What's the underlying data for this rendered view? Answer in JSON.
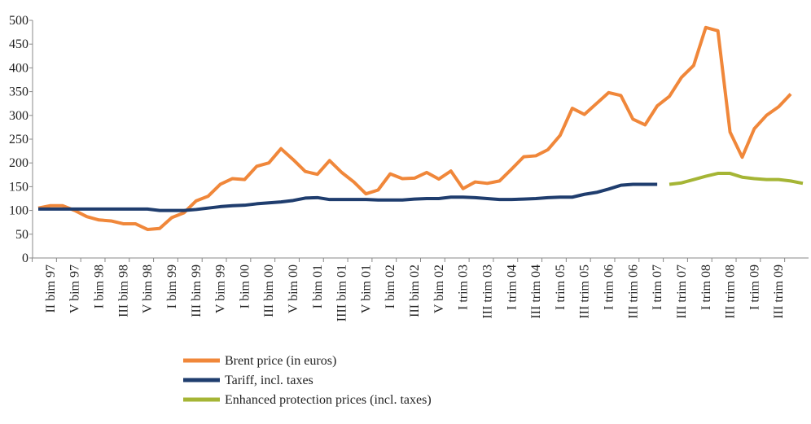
{
  "chart_data": {
    "type": "line",
    "categories": [
      null,
      "II bim 97",
      null,
      "V bim 97",
      null,
      "I bim 98",
      null,
      "III bim 98",
      null,
      "V bim 98",
      null,
      "I bim 99",
      null,
      "III bim 99",
      null,
      "V bim 99",
      null,
      "I bim 00",
      null,
      "III bim 00",
      null,
      "V bim 00",
      null,
      "I bim 01",
      null,
      "IIII bim 01",
      null,
      "V bim 01",
      null,
      "I bim 02",
      null,
      "III bim 02",
      null,
      "V bim 02",
      null,
      "I trim 03",
      null,
      "III trim 03",
      null,
      "I trim 04",
      null,
      "III trim 04",
      null,
      "I trim 05",
      null,
      "III trim 05",
      null,
      "I trim 06",
      null,
      "III trim 06",
      null,
      "I trim 07",
      null,
      "III trim 07",
      null,
      "I trim 08",
      null,
      "III trim 08",
      null,
      "I trim 09",
      null,
      "III trim 09",
      null,
      null
    ],
    "series": [
      {
        "name": "Brent price  (in euros)",
        "color": "#f0873a",
        "values": [
          105,
          110,
          110,
          100,
          87,
          80,
          78,
          72,
          72,
          60,
          62,
          85,
          95,
          120,
          130,
          155,
          167,
          165,
          193,
          200,
          230,
          207,
          182,
          176,
          205,
          180,
          160,
          135,
          143,
          177,
          167,
          168,
          180,
          166,
          183,
          146,
          160,
          157,
          162,
          187,
          213,
          215,
          228,
          258,
          315,
          302,
          325,
          348,
          342,
          292,
          280,
          320,
          340,
          380,
          405,
          485,
          478,
          265,
          212,
          272,
          300,
          318,
          345,
          null
        ]
      },
      {
        "name": "Tariff, incl. taxes",
        "color": "#1f3d6e",
        "values": [
          103,
          103,
          103,
          103,
          103,
          103,
          103,
          103,
          103,
          103,
          100,
          100,
          100,
          102,
          105,
          108,
          110,
          111,
          114,
          116,
          118,
          121,
          126,
          127,
          123,
          123,
          123,
          123,
          122,
          122,
          122,
          124,
          125,
          125,
          128,
          128,
          127,
          125,
          123,
          123,
          124,
          125,
          127,
          128,
          128,
          134,
          138,
          145,
          153,
          155,
          155,
          155,
          null,
          null,
          null,
          null,
          null,
          null,
          null,
          null,
          null,
          null,
          null,
          null
        ]
      },
      {
        "name": "Enhanced protection prices (incl. taxes)",
        "color": "#a5b535",
        "values": [
          null,
          null,
          null,
          null,
          null,
          null,
          null,
          null,
          null,
          null,
          null,
          null,
          null,
          null,
          null,
          null,
          null,
          null,
          null,
          null,
          null,
          null,
          null,
          null,
          null,
          null,
          null,
          null,
          null,
          null,
          null,
          null,
          null,
          null,
          null,
          null,
          null,
          null,
          null,
          null,
          null,
          null,
          null,
          null,
          null,
          null,
          null,
          null,
          null,
          null,
          null,
          null,
          155,
          158,
          165,
          172,
          178,
          178,
          170,
          167,
          165,
          165,
          162,
          157
        ]
      }
    ],
    "ylim": [
      0,
      500
    ],
    "yticks": [
      0,
      50,
      100,
      150,
      200,
      250,
      300,
      350,
      400,
      450,
      500
    ]
  }
}
